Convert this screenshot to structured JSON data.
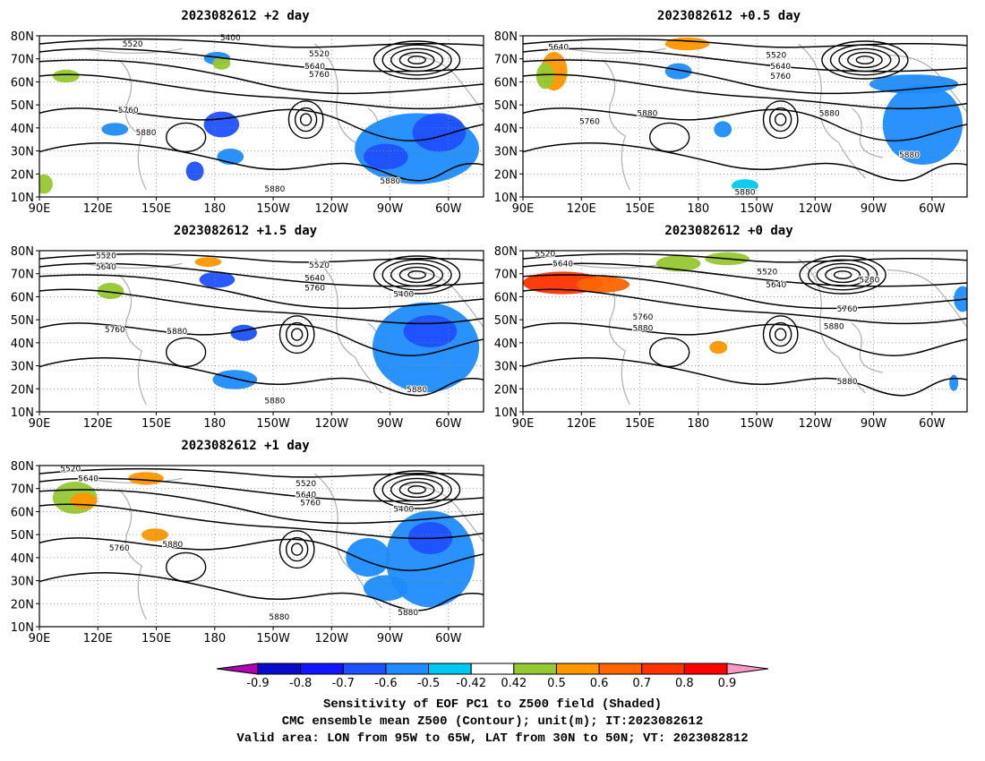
{
  "panels": [
    {
      "title": "2023082612 +2 day",
      "labels": [
        "5520",
        "5400",
        "5520",
        "5640",
        "5760",
        "5760",
        "5880",
        "5880",
        "5880"
      ]
    },
    {
      "title": "2023082612 +0.5 day",
      "labels": [
        "5640",
        "5520",
        "5640",
        "5760",
        "5760",
        "5880",
        "5880",
        "5880",
        "5880"
      ]
    },
    {
      "title": "2023082612 +1.5 day",
      "labels": [
        "5520",
        "5640",
        "5520",
        "5640",
        "5760",
        "5400",
        "5760",
        "5880",
        "5880",
        "5880"
      ]
    },
    {
      "title": "2023082612 +0 day",
      "labels": [
        "5520",
        "5640",
        "5520",
        "5640",
        "5280",
        "5760",
        "5760",
        "5880",
        "5880",
        "5880"
      ]
    },
    {
      "title": "2023082612 +1 day",
      "labels": [
        "5520",
        "5640",
        "5520",
        "5640",
        "5760",
        "5400",
        "5760",
        "5880",
        "5880",
        "5880"
      ]
    }
  ],
  "axes": {
    "lat_ticks": [
      "80N",
      "70N",
      "60N",
      "50N",
      "40N",
      "30N",
      "20N",
      "10N"
    ],
    "lon_ticks": [
      "90E",
      "120E",
      "150E",
      "180",
      "150W",
      "120W",
      "90W",
      "60W"
    ]
  },
  "colorbar": {
    "ticks": [
      "-0.9",
      "-0.8",
      "-0.7",
      "-0.6",
      "-0.5",
      "-0.42",
      "0.42",
      "0.5",
      "0.6",
      "0.7",
      "0.8",
      "0.9"
    ],
    "colors": [
      "#b000b0",
      "#0a0acc",
      "#1414ff",
      "#1e50ff",
      "#1e8cff",
      "#00c8f0",
      "#ffffff",
      "#96c832",
      "#ff9600",
      "#ff6400",
      "#ff3200",
      "#ff0000",
      "#ff96c8"
    ]
  },
  "footer": {
    "line1": "Sensitivity of EOF PC1 to Z500 field (Shaded)",
    "line2": "CMC ensemble mean Z500 (Contour); unit(m); IT:2023082612",
    "line3": "Valid area: LON from 95W to 65W, LAT from 30N to 50N; VT: 2023082812"
  }
}
